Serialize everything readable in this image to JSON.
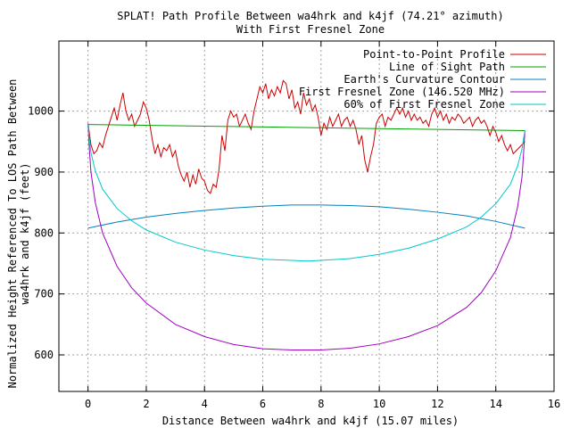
{
  "chart_data": {
    "type": "line",
    "title": "SPLAT! Path Profile Between wa4hrk and k4jf (74.21° azimuth)",
    "subtitle": "With First Fresnel Zone",
    "xlabel": "Distance Between wa4hrk and k4jf (15.07 miles)",
    "ylabel": [
      "Normalized Height Referenced To LOS Path Between",
      "wa4hrk and k4jf (feet)"
    ],
    "xlim": [
      -1,
      16
    ],
    "ylim": [
      540,
      1115
    ],
    "xticks": [
      0,
      2,
      4,
      6,
      8,
      10,
      12,
      14,
      16
    ],
    "yticks": [
      600,
      700,
      800,
      900,
      1000
    ],
    "grid": true,
    "legend_position": "top-right",
    "series": [
      {
        "name": "Point-to-Point Profile",
        "color": "#cc0000",
        "x": [
          0,
          0.1,
          0.2,
          0.3,
          0.4,
          0.5,
          0.6,
          0.7,
          0.8,
          0.9,
          1.0,
          1.1,
          1.2,
          1.3,
          1.4,
          1.5,
          1.6,
          1.7,
          1.8,
          1.9,
          2.0,
          2.1,
          2.2,
          2.3,
          2.4,
          2.5,
          2.6,
          2.7,
          2.8,
          2.9,
          3.0,
          3.1,
          3.2,
          3.3,
          3.4,
          3.5,
          3.6,
          3.7,
          3.8,
          3.9,
          4.0,
          4.1,
          4.2,
          4.3,
          4.4,
          4.5,
          4.6,
          4.7,
          4.8,
          4.9,
          5.0,
          5.1,
          5.2,
          5.3,
          5.4,
          5.5,
          5.6,
          5.7,
          5.8,
          5.9,
          6.0,
          6.1,
          6.2,
          6.3,
          6.4,
          6.5,
          6.6,
          6.7,
          6.8,
          6.9,
          7.0,
          7.1,
          7.2,
          7.3,
          7.4,
          7.5,
          7.6,
          7.7,
          7.8,
          7.9,
          8.0,
          8.1,
          8.2,
          8.3,
          8.4,
          8.5,
          8.6,
          8.7,
          8.8,
          8.9,
          9.0,
          9.1,
          9.2,
          9.3,
          9.4,
          9.5,
          9.6,
          9.7,
          9.8,
          9.9,
          10.0,
          10.1,
          10.2,
          10.3,
          10.4,
          10.5,
          10.6,
          10.7,
          10.8,
          10.9,
          11.0,
          11.1,
          11.2,
          11.3,
          11.4,
          11.5,
          11.6,
          11.7,
          11.8,
          11.9,
          12.0,
          12.1,
          12.2,
          12.3,
          12.4,
          12.5,
          12.6,
          12.7,
          12.8,
          12.9,
          13.0,
          13.1,
          13.2,
          13.3,
          13.4,
          13.5,
          13.6,
          13.7,
          13.8,
          13.9,
          14.0,
          14.1,
          14.2,
          14.3,
          14.4,
          14.5,
          14.6,
          14.7,
          14.8,
          14.9,
          15.0
        ],
        "y": [
          980,
          945,
          930,
          935,
          948,
          940,
          960,
          975,
          990,
          1005,
          985,
          1010,
          1030,
          1000,
          985,
          995,
          975,
          985,
          995,
          1015,
          1005,
          985,
          955,
          930,
          945,
          925,
          940,
          935,
          945,
          925,
          935,
          910,
          895,
          885,
          900,
          875,
          895,
          880,
          905,
          890,
          885,
          870,
          865,
          880,
          875,
          905,
          960,
          935,
          985,
          1000,
          990,
          995,
          975,
          985,
          995,
          980,
          970,
          1000,
          1020,
          1040,
          1030,
          1045,
          1020,
          1035,
          1025,
          1040,
          1030,
          1050,
          1045,
          1020,
          1035,
          1005,
          1015,
          995,
          1030,
          1010,
          1020,
          1000,
          1010,
          990,
          960,
          980,
          970,
          990,
          975,
          985,
          995,
          975,
          985,
          990,
          975,
          985,
          970,
          945,
          960,
          920,
          900,
          925,
          945,
          980,
          990,
          995,
          975,
          990,
          985,
          995,
          1005,
          995,
          1005,
          990,
          1000,
          985,
          995,
          985,
          990,
          980,
          985,
          975,
          995,
          1005,
          990,
          1000,
          985,
          995,
          980,
          990,
          985,
          995,
          990,
          980,
          985,
          990,
          975,
          985,
          990,
          980,
          985,
          975,
          960,
          975,
          965,
          950,
          960,
          945,
          935,
          945,
          930,
          935,
          940,
          945,
          950
        ]
      },
      {
        "name": "Line of Sight Path",
        "color": "#00a000",
        "x": [
          0,
          15
        ],
        "y": [
          978,
          968
        ]
      },
      {
        "name": "Earth's Curvature Contour",
        "color": "#0080c0",
        "x": [
          0,
          1,
          2,
          3,
          4,
          5,
          6,
          7,
          7.5,
          8,
          9,
          10,
          11,
          12,
          13,
          14,
          15
        ],
        "y": [
          808,
          818,
          826,
          832,
          837,
          841,
          844,
          846,
          846,
          846,
          845,
          843,
          839,
          834,
          828,
          819,
          808
        ]
      },
      {
        "name": "First Fresnel Zone (146.520 MHz)",
        "color": "#a000c0",
        "x": [
          0,
          0.05,
          0.1,
          0.25,
          0.5,
          1,
          1.5,
          2,
          3,
          4,
          5,
          6,
          7,
          7.5,
          8,
          9,
          10,
          11,
          12,
          13,
          13.5,
          14,
          14.5,
          14.75,
          14.9,
          14.95,
          15
        ],
        "y": [
          978,
          935,
          900,
          850,
          800,
          745,
          710,
          685,
          650,
          630,
          617,
          610,
          608,
          608,
          608,
          611,
          618,
          630,
          648,
          678,
          702,
          738,
          792,
          843,
          892,
          927,
          968
        ]
      },
      {
        "name": "60% of First Fresnel Zone",
        "color": "#00c8c8",
        "x": [
          0,
          0.05,
          0.1,
          0.25,
          0.5,
          1,
          1.5,
          2,
          3,
          4,
          5,
          6,
          7,
          7.5,
          8,
          9,
          10,
          11,
          12,
          13,
          13.5,
          14,
          14.5,
          14.75,
          14.9,
          14.95,
          15
        ],
        "y": [
          978,
          952,
          932,
          902,
          872,
          840,
          820,
          805,
          785,
          772,
          763,
          757,
          755,
          754,
          755,
          758,
          765,
          775,
          790,
          810,
          826,
          848,
          880,
          910,
          938,
          954,
          968
        ]
      }
    ]
  }
}
